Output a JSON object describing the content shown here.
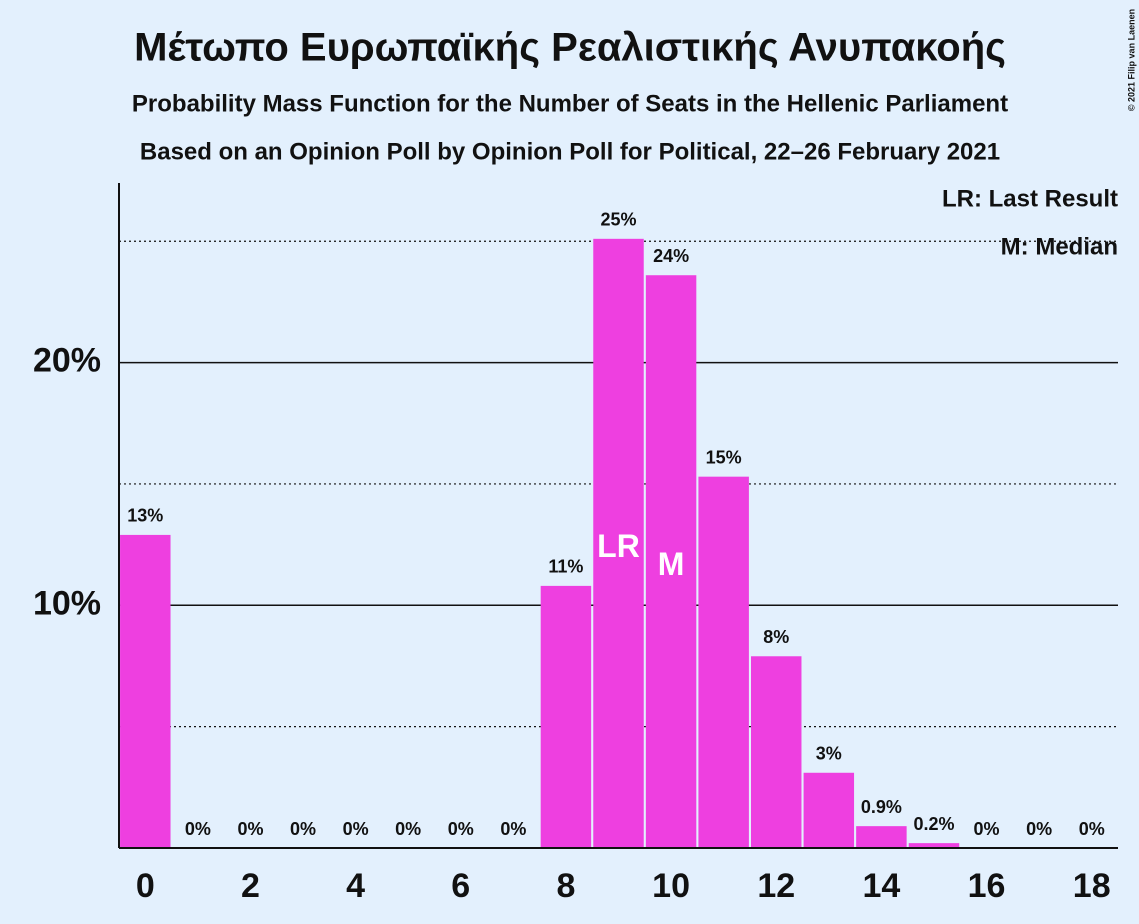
{
  "chart_data": {
    "type": "bar",
    "title": "Μέτωπο Ευρωπαϊκής Ρεαλιστικής Ανυπακοής",
    "subtitles": [
      "Probability Mass Function for the Number of Seats in the Hellenic Parliament",
      "Based on an Opinion Poll by Opinion Poll for Political, 22–26 February 2021"
    ],
    "x": [
      0,
      1,
      2,
      3,
      4,
      5,
      6,
      7,
      8,
      9,
      10,
      11,
      12,
      13,
      14,
      15,
      16,
      17,
      18
    ],
    "values": [
      12.9,
      0,
      0,
      0,
      0,
      0,
      0,
      0,
      10.8,
      25.1,
      23.6,
      15.3,
      7.9,
      3.1,
      0.9,
      0.2,
      0,
      0,
      0
    ],
    "value_labels": [
      "13%",
      "0%",
      "0%",
      "0%",
      "0%",
      "0%",
      "0%",
      "0%",
      "11%",
      "25%",
      "24%",
      "15%",
      "8%",
      "3%",
      "0.9%",
      "0.2%",
      "0%",
      "0%",
      "0%"
    ],
    "color": "#ee3fe0",
    "xlim": [
      -0.5,
      18.5
    ],
    "xticks": [
      0,
      2,
      4,
      6,
      8,
      10,
      12,
      14,
      16,
      18
    ],
    "ylim": [
      0,
      27.4
    ],
    "yticks": [
      {
        "value": 10,
        "label": "10%"
      },
      {
        "value": 20,
        "label": "20%"
      }
    ],
    "minor_gridlines": [
      5,
      15,
      25
    ],
    "grid": true,
    "annotations": [
      {
        "text": "LR",
        "x": 9
      },
      {
        "text": "M",
        "x": 10
      }
    ],
    "legend_notes": [
      "LR: Last Result",
      "M: Median"
    ],
    "copyright": "© 2021 Filip van Laenen"
  }
}
